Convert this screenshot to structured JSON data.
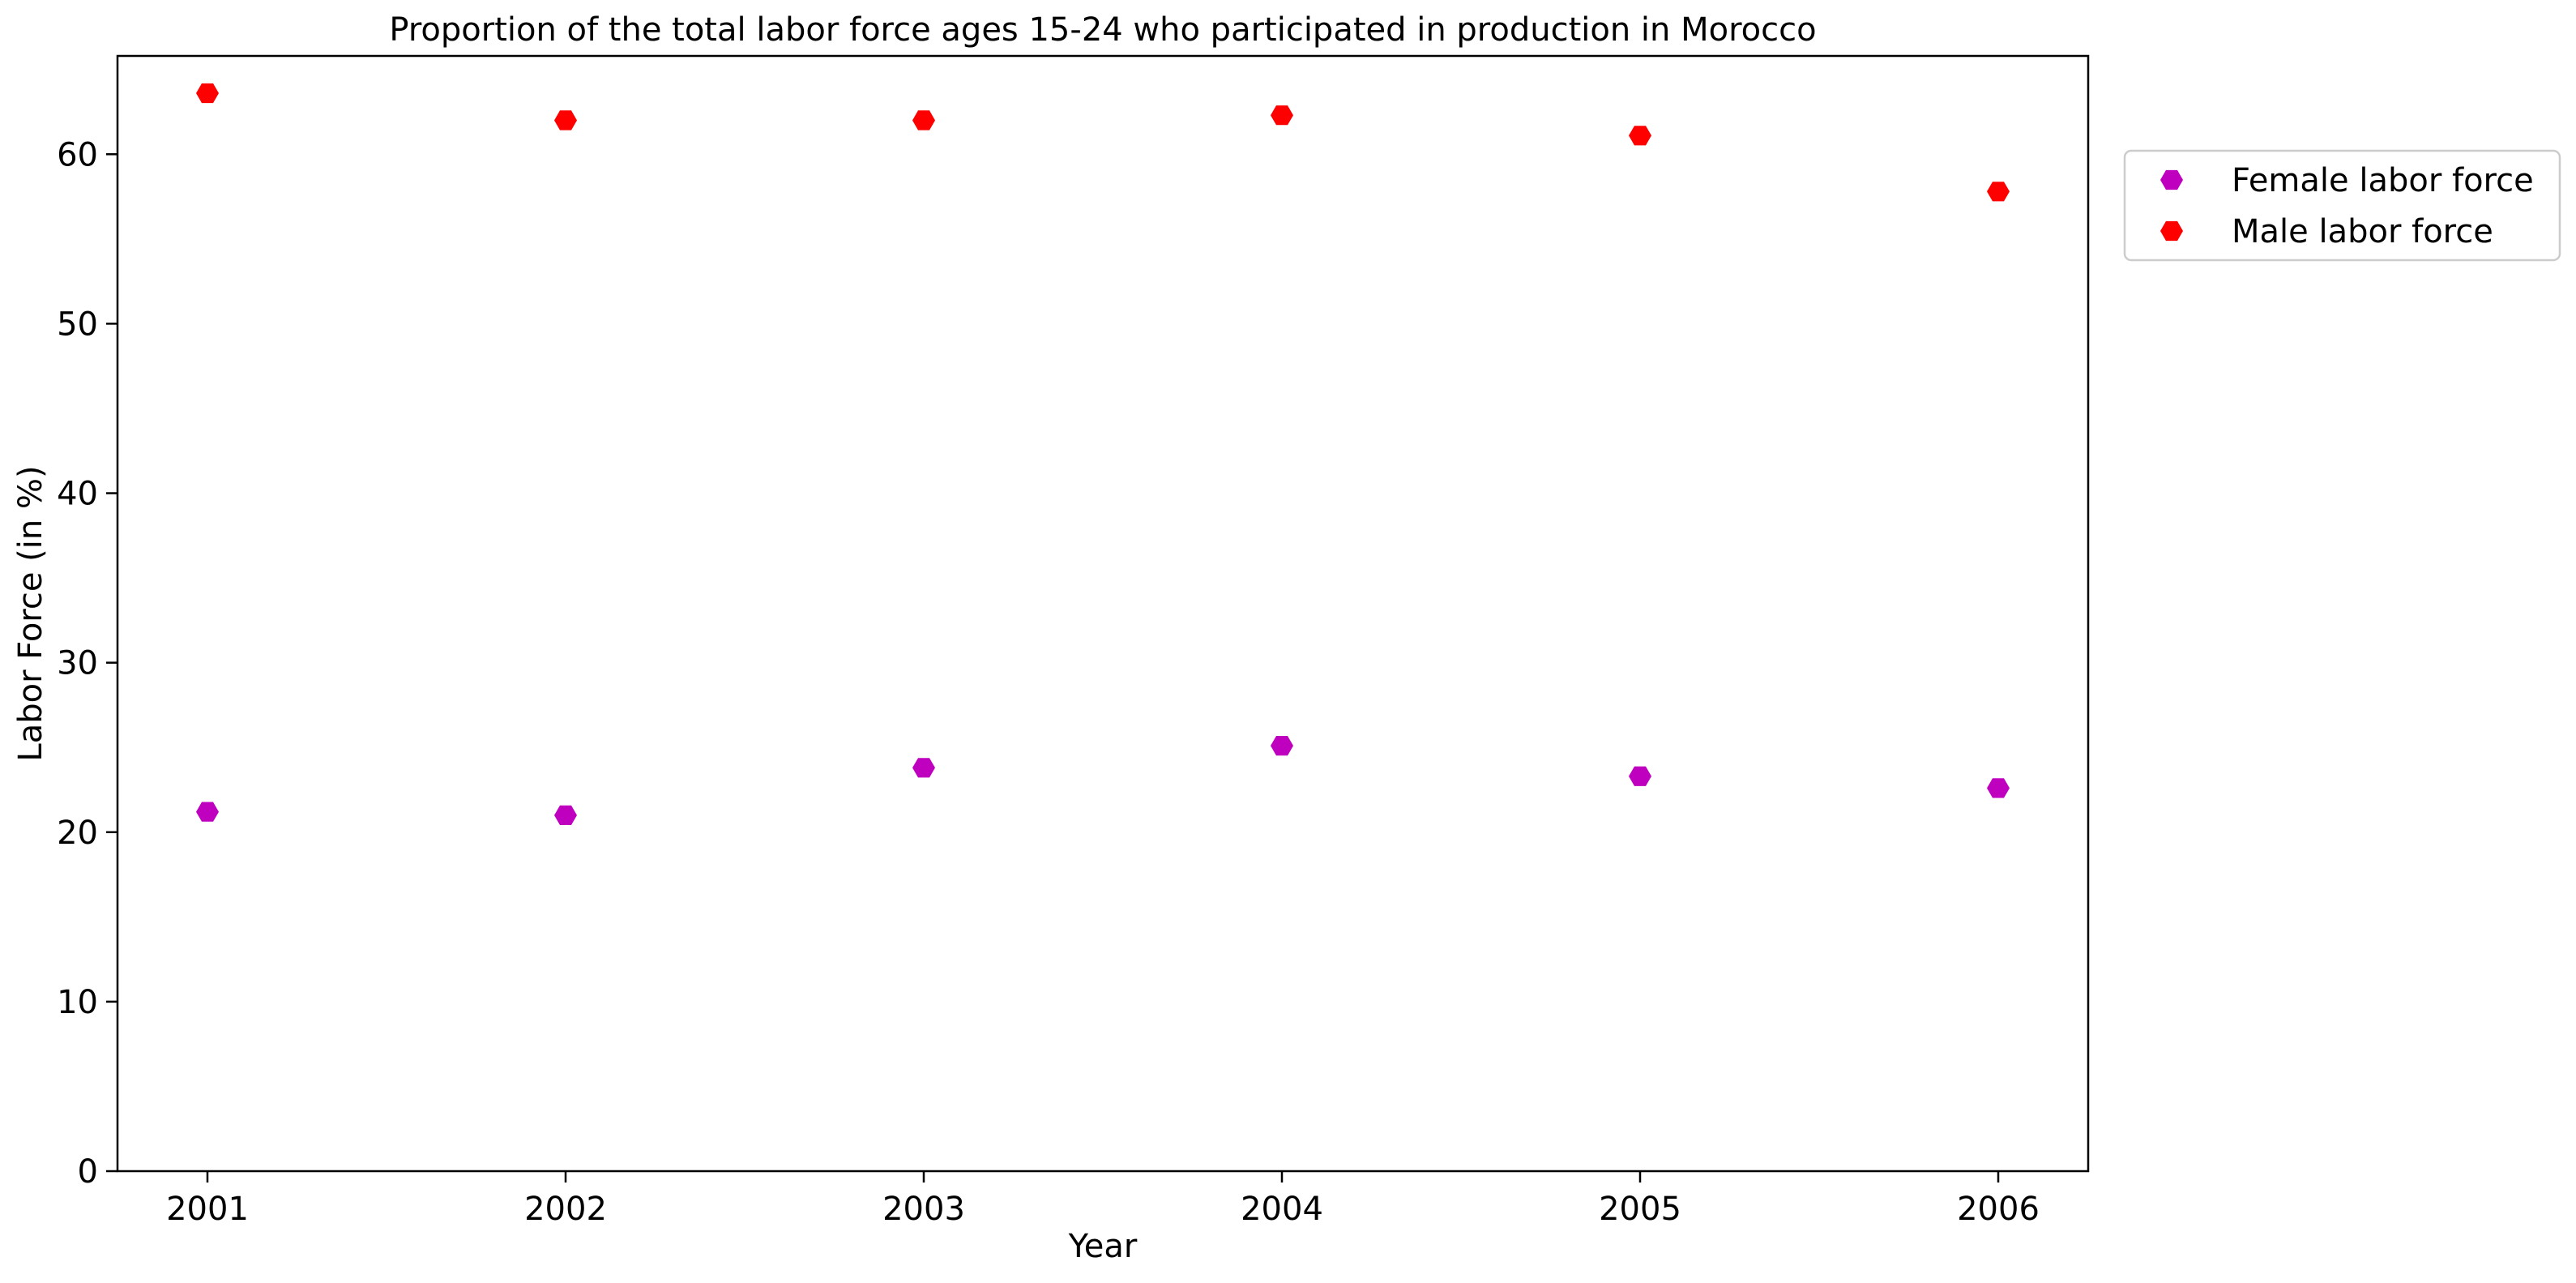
{
  "chart_data": {
    "type": "scatter",
    "title": "Proportion of the total labor force ages 15-24 who participated in production in Morocco",
    "xlabel": "Year",
    "ylabel": "Labor Force (in %)",
    "categories": [
      "2001",
      "2002",
      "2003",
      "2004",
      "2005",
      "2006"
    ],
    "ylim": [
      0,
      65.8
    ],
    "yticks": [
      0,
      10,
      20,
      30,
      40,
      50,
      60
    ],
    "grid": false,
    "legend_position": "outside-top-right",
    "series": [
      {
        "name": "Female labor force",
        "color": "#bf00bf",
        "marker": "hexagon",
        "values": [
          21.2,
          21.0,
          23.8,
          25.1,
          23.3,
          22.6
        ]
      },
      {
        "name": "Male labor force",
        "color": "#ff0000",
        "marker": "hexagon",
        "values": [
          63.6,
          62.0,
          62.0,
          62.3,
          61.1,
          57.8
        ]
      }
    ]
  }
}
